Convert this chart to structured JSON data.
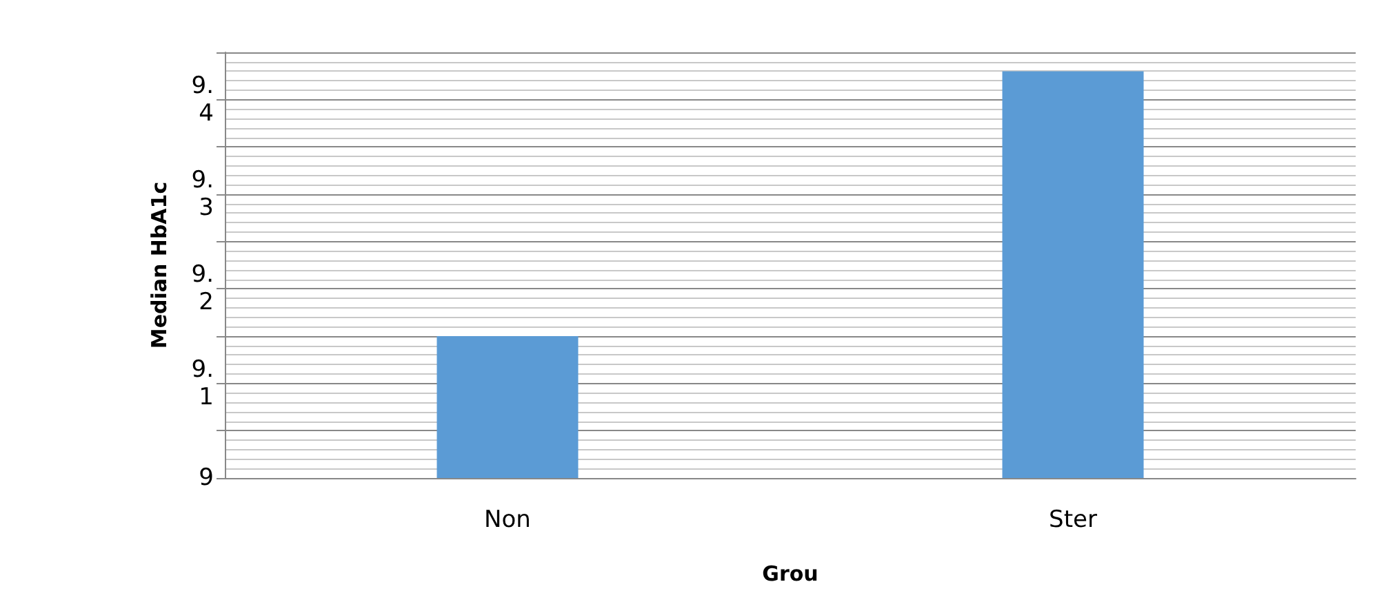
{
  "chart_data": {
    "type": "bar",
    "xlabel": "Grou",
    "ylabel": "Median HbA1c",
    "categories": [
      "Non",
      "Ster"
    ],
    "values": [
      9.15,
      9.43
    ],
    "color": "#5b9bd5",
    "ylim": [
      9,
      9.45
    ],
    "yticks": [
      9,
      {
        "value": 9.05,
        "label": null
      },
      9.1,
      {
        "value": 9.15,
        "label": null
      },
      9.2,
      {
        "value": 9.25,
        "label": null
      },
      9.3,
      {
        "value": 9.35,
        "label": null
      },
      9.4,
      {
        "value": 9.45,
        "label": null
      }
    ],
    "grid": "y"
  }
}
